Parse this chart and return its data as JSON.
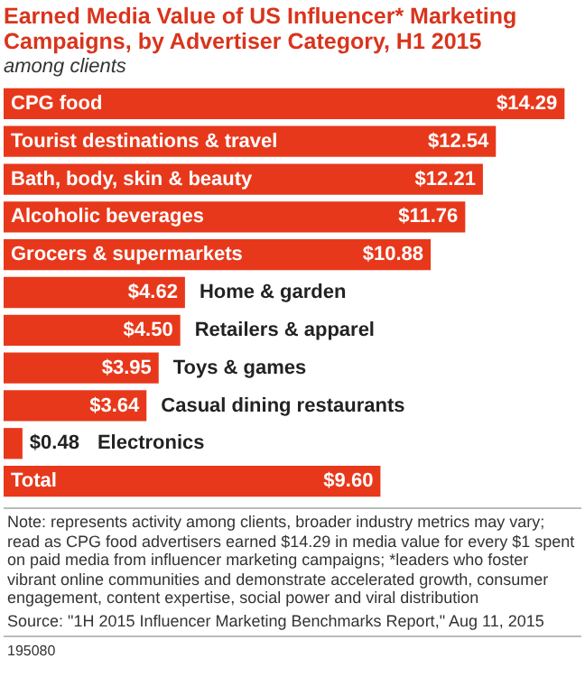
{
  "chart_data": {
    "type": "bar",
    "orientation": "horizontal",
    "title": "Earned Media Value of US Influencer* Marketing Campaigns, by Advertiser Category, H1 2015",
    "subtitle": "among clients",
    "categories": [
      "CPG food",
      "Tourist destinations & travel",
      "Bath, body, skin & beauty",
      "Alcoholic beverages",
      "Grocers & supermarkets",
      "Home & garden",
      "Retailers & apparel",
      "Toys & games",
      "Casual dining restaurants",
      "Electronics",
      "Total"
    ],
    "values": [
      14.29,
      12.54,
      12.21,
      11.76,
      10.88,
      4.62,
      4.5,
      3.95,
      3.64,
      0.48,
      9.6
    ],
    "value_labels": [
      "$14.29",
      "$12.54",
      "$12.21",
      "$11.76",
      "$10.88",
      "$4.62",
      "$4.50",
      "$3.95",
      "$3.64",
      "$0.48",
      "$9.60"
    ],
    "color": "#e8381b",
    "legend": false,
    "tick_labels": false,
    "annotations": [
      "Note: represents activity among clients, broader industry metrics may vary; read as CPG food advertisers earned $14.29 in media value for every $1 spent on paid media from influencer marketing campaigns; *leaders who foster vibrant online communities and demonstrate accelerated growth, consumer engagement, content expertise, social power and viral distribution",
      "Source: \"1H 2015 Influencer Marketing Benchmarks Report,\" Aug 11, 2015",
      "195080"
    ]
  }
}
